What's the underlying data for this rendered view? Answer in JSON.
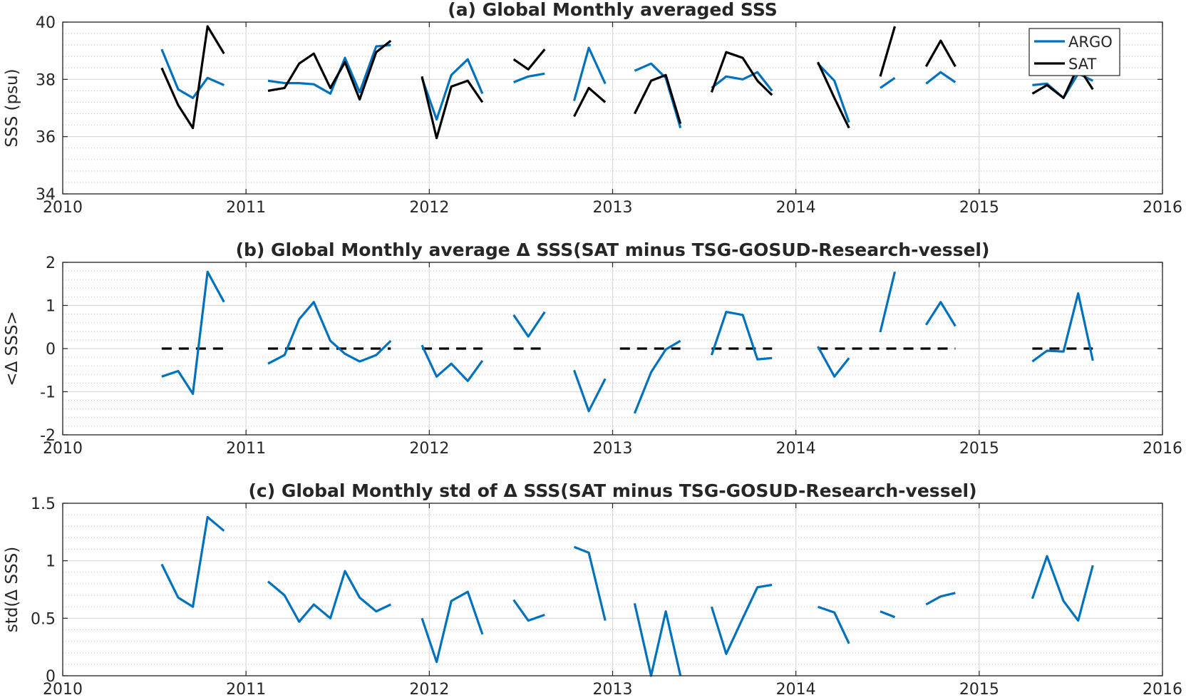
{
  "colors": {
    "argo": "#0072BD",
    "sat": "#000000",
    "grid_major": "#d9d9d9",
    "grid_minor": "#bfbfbf",
    "axes": "#262626"
  },
  "chart_data": [
    {
      "type": "line",
      "title": "(a) Global Monthly averaged SSS",
      "xlabel": "",
      "ylabel": "SSS (psu)",
      "xlim": [
        2010,
        2016
      ],
      "ylim": [
        34,
        40
      ],
      "xticks": [
        "2010",
        "2011",
        "2012",
        "2013",
        "2014",
        "2015",
        "2016"
      ],
      "yticks": [
        "34",
        "36",
        "38",
        "40"
      ],
      "grid": true,
      "minor_grid": true,
      "legend": {
        "position": "top-right",
        "entries": [
          "ARGO",
          "SAT"
        ]
      },
      "series": [
        {
          "name": "ARGO",
          "color": "#0072BD",
          "segments": [
            [
              [
                2010.54,
                39.05
              ],
              [
                2010.63,
                37.65
              ],
              [
                2010.71,
                37.35
              ],
              [
                2010.79,
                38.05
              ],
              [
                2010.88,
                37.8
              ]
            ],
            [
              [
                2011.12,
                37.95
              ],
              [
                2011.21,
                37.87
              ],
              [
                2011.29,
                37.87
              ],
              [
                2011.37,
                37.83
              ],
              [
                2011.46,
                37.5
              ],
              [
                2011.54,
                38.75
              ],
              [
                2011.62,
                37.55
              ],
              [
                2011.71,
                39.15
              ],
              [
                2011.79,
                39.2
              ]
            ],
            [
              [
                2011.96,
                38.05
              ],
              [
                2012.04,
                36.6
              ],
              [
                2012.12,
                38.15
              ],
              [
                2012.21,
                38.7
              ],
              [
                2012.29,
                37.5
              ]
            ],
            [
              [
                2012.46,
                37.9
              ],
              [
                2012.54,
                38.1
              ],
              [
                2012.63,
                38.2
              ]
            ],
            [
              [
                2012.79,
                37.25
              ],
              [
                2012.87,
                39.1
              ],
              [
                2012.96,
                37.85
              ]
            ],
            [
              [
                2013.12,
                38.3
              ],
              [
                2013.21,
                38.55
              ],
              [
                2013.29,
                38.05
              ],
              [
                2013.37,
                36.3
              ]
            ],
            [
              [
                2013.54,
                37.7
              ],
              [
                2013.62,
                38.1
              ],
              [
                2013.71,
                38.0
              ],
              [
                2013.79,
                38.25
              ],
              [
                2013.87,
                37.6
              ]
            ],
            [
              [
                2014.12,
                38.55
              ],
              [
                2014.21,
                37.95
              ],
              [
                2014.29,
                36.5
              ]
            ],
            [
              [
                2014.46,
                37.7
              ],
              [
                2014.54,
                38.05
              ]
            ],
            [
              [
                2014.71,
                37.85
              ],
              [
                2014.79,
                38.25
              ],
              [
                2014.87,
                37.9
              ]
            ],
            [
              [
                2015.29,
                37.8
              ],
              [
                2015.37,
                37.85
              ],
              [
                2015.46,
                37.35
              ],
              [
                2015.54,
                38.2
              ],
              [
                2015.62,
                37.95
              ]
            ]
          ]
        },
        {
          "name": "SAT",
          "color": "#000000",
          "segments": [
            [
              [
                2010.54,
                38.4
              ],
              [
                2010.63,
                37.1
              ],
              [
                2010.71,
                36.3
              ],
              [
                2010.79,
                39.85
              ],
              [
                2010.88,
                38.9
              ]
            ],
            [
              [
                2011.12,
                37.6
              ],
              [
                2011.21,
                37.7
              ],
              [
                2011.29,
                38.55
              ],
              [
                2011.37,
                38.9
              ],
              [
                2011.46,
                37.7
              ],
              [
                2011.54,
                38.6
              ],
              [
                2011.62,
                37.3
              ],
              [
                2011.71,
                38.95
              ],
              [
                2011.79,
                39.35
              ]
            ],
            [
              [
                2011.96,
                38.1
              ],
              [
                2012.04,
                35.95
              ],
              [
                2012.12,
                37.75
              ],
              [
                2012.21,
                37.95
              ],
              [
                2012.29,
                37.2
              ]
            ],
            [
              [
                2012.46,
                38.7
              ],
              [
                2012.54,
                38.35
              ],
              [
                2012.63,
                39.05
              ]
            ],
            [
              [
                2012.79,
                36.7
              ],
              [
                2012.87,
                37.7
              ],
              [
                2012.96,
                37.2
              ]
            ],
            [
              [
                2013.12,
                36.8
              ],
              [
                2013.21,
                37.95
              ],
              [
                2013.29,
                38.15
              ],
              [
                2013.37,
                36.45
              ]
            ],
            [
              [
                2013.54,
                37.55
              ],
              [
                2013.62,
                38.95
              ],
              [
                2013.71,
                38.75
              ],
              [
                2013.79,
                37.95
              ],
              [
                2013.87,
                37.45
              ]
            ],
            [
              [
                2014.12,
                38.6
              ],
              [
                2014.21,
                37.35
              ],
              [
                2014.29,
                36.3
              ]
            ],
            [
              [
                2014.46,
                38.1
              ],
              [
                2014.54,
                39.85
              ]
            ],
            [
              [
                2014.71,
                38.45
              ],
              [
                2014.79,
                39.35
              ],
              [
                2014.87,
                38.45
              ]
            ],
            [
              [
                2015.29,
                37.5
              ],
              [
                2015.37,
                37.8
              ],
              [
                2015.46,
                37.35
              ],
              [
                2015.54,
                38.45
              ],
              [
                2015.62,
                37.65
              ]
            ]
          ]
        }
      ]
    },
    {
      "type": "line",
      "title": "(b) Global Monthly average Δ SSS(SAT minus TSG-GOSUD-Research-vessel)",
      "xlabel": "",
      "ylabel": "<Δ SSS>",
      "xlim": [
        2010,
        2016
      ],
      "ylim": [
        -2,
        2
      ],
      "xticks": [
        "2010",
        "2011",
        "2012",
        "2013",
        "2014",
        "2015",
        "2016"
      ],
      "yticks": [
        "-2",
        "-1",
        "0",
        "1",
        "2"
      ],
      "grid": true,
      "minor_grid": true,
      "zero_line": {
        "style": "dashed",
        "color": "#000000",
        "ranges": [
          [
            2010.54,
            2010.88
          ],
          [
            2011.12,
            2011.79
          ],
          [
            2011.96,
            2012.29
          ],
          [
            2012.46,
            2012.63
          ],
          [
            2013.04,
            2013.37
          ],
          [
            2013.54,
            2013.87
          ],
          [
            2014.12,
            2014.87
          ],
          [
            2015.29,
            2015.62
          ]
        ]
      },
      "series": [
        {
          "name": "",
          "color": "#0072BD",
          "segments": [
            [
              [
                2010.54,
                -0.65
              ],
              [
                2010.63,
                -0.52
              ],
              [
                2010.71,
                -1.05
              ],
              [
                2010.79,
                1.78
              ],
              [
                2010.88,
                1.08
              ]
            ],
            [
              [
                2011.12,
                -0.35
              ],
              [
                2011.21,
                -0.15
              ],
              [
                2011.29,
                0.68
              ],
              [
                2011.37,
                1.08
              ],
              [
                2011.46,
                0.18
              ],
              [
                2011.54,
                -0.12
              ],
              [
                2011.62,
                -0.3
              ],
              [
                2011.71,
                -0.15
              ],
              [
                2011.79,
                0.18
              ]
            ],
            [
              [
                2011.96,
                0.08
              ],
              [
                2012.04,
                -0.65
              ],
              [
                2012.12,
                -0.35
              ],
              [
                2012.21,
                -0.75
              ],
              [
                2012.29,
                -0.28
              ]
            ],
            [
              [
                2012.46,
                0.78
              ],
              [
                2012.54,
                0.28
              ],
              [
                2012.63,
                0.85
              ]
            ],
            [
              [
                2012.79,
                -0.5
              ],
              [
                2012.87,
                -1.45
              ],
              [
                2012.96,
                -0.7
              ]
            ],
            [
              [
                2013.12,
                -1.5
              ],
              [
                2013.21,
                -0.55
              ],
              [
                2013.29,
                -0.02
              ],
              [
                2013.37,
                0.18
              ]
            ],
            [
              [
                2013.54,
                -0.15
              ],
              [
                2013.62,
                0.85
              ],
              [
                2013.71,
                0.78
              ],
              [
                2013.79,
                -0.25
              ],
              [
                2013.87,
                -0.22
              ]
            ],
            [
              [
                2014.12,
                0.05
              ],
              [
                2014.21,
                -0.65
              ],
              [
                2014.29,
                -0.22
              ]
            ],
            [
              [
                2014.46,
                0.38
              ],
              [
                2014.54,
                1.78
              ]
            ],
            [
              [
                2014.71,
                0.55
              ],
              [
                2014.79,
                1.08
              ],
              [
                2014.87,
                0.52
              ]
            ],
            [
              [
                2015.29,
                -0.3
              ],
              [
                2015.37,
                -0.05
              ],
              [
                2015.46,
                -0.07
              ],
              [
                2015.54,
                1.28
              ],
              [
                2015.62,
                -0.28
              ]
            ]
          ]
        }
      ]
    },
    {
      "type": "line",
      "title": "(c) Global Monthly std of Δ SSS(SAT minus TSG-GOSUD-Research-vessel)",
      "xlabel": "",
      "ylabel": "std(Δ SSS)",
      "xlim": [
        2010,
        2016
      ],
      "ylim": [
        0,
        1.5
      ],
      "xticks": [
        "2010",
        "2011",
        "2012",
        "2013",
        "2014",
        "2015",
        "2016"
      ],
      "yticks": [
        "0",
        "0.5",
        "1",
        "1.5"
      ],
      "grid": true,
      "minor_grid": true,
      "series": [
        {
          "name": "",
          "color": "#0072BD",
          "segments": [
            [
              [
                2010.54,
                0.97
              ],
              [
                2010.63,
                0.68
              ],
              [
                2010.71,
                0.6
              ],
              [
                2010.79,
                1.38
              ],
              [
                2010.88,
                1.26
              ]
            ],
            [
              [
                2011.12,
                0.82
              ],
              [
                2011.21,
                0.7
              ],
              [
                2011.29,
                0.47
              ],
              [
                2011.37,
                0.62
              ],
              [
                2011.46,
                0.5
              ],
              [
                2011.54,
                0.91
              ],
              [
                2011.62,
                0.68
              ],
              [
                2011.71,
                0.56
              ],
              [
                2011.79,
                0.62
              ]
            ],
            [
              [
                2011.96,
                0.5
              ],
              [
                2012.04,
                0.12
              ],
              [
                2012.12,
                0.65
              ],
              [
                2012.21,
                0.73
              ],
              [
                2012.29,
                0.36
              ]
            ],
            [
              [
                2012.46,
                0.66
              ],
              [
                2012.54,
                0.48
              ],
              [
                2012.63,
                0.53
              ]
            ],
            [
              [
                2012.79,
                1.12
              ],
              [
                2012.87,
                1.07
              ],
              [
                2012.96,
                0.48
              ]
            ],
            [
              [
                2013.12,
                0.63
              ],
              [
                2013.21,
                0.0
              ],
              [
                2013.29,
                0.56
              ],
              [
                2013.37,
                0.0
              ]
            ],
            [
              [
                2013.54,
                0.6
              ],
              [
                2013.62,
                0.19
              ],
              [
                2013.71,
                0.5
              ],
              [
                2013.79,
                0.77
              ],
              [
                2013.87,
                0.79
              ]
            ],
            [
              [
                2014.12,
                0.6
              ],
              [
                2014.21,
                0.55
              ],
              [
                2014.29,
                0.28
              ]
            ],
            [
              [
                2014.46,
                0.56
              ],
              [
                2014.54,
                0.51
              ]
            ],
            [
              [
                2014.71,
                0.62
              ],
              [
                2014.79,
                0.69
              ],
              [
                2014.87,
                0.72
              ]
            ],
            [
              [
                2015.29,
                0.67
              ],
              [
                2015.37,
                1.04
              ],
              [
                2015.46,
                0.65
              ],
              [
                2015.54,
                0.48
              ],
              [
                2015.62,
                0.96
              ]
            ]
          ]
        }
      ]
    }
  ]
}
